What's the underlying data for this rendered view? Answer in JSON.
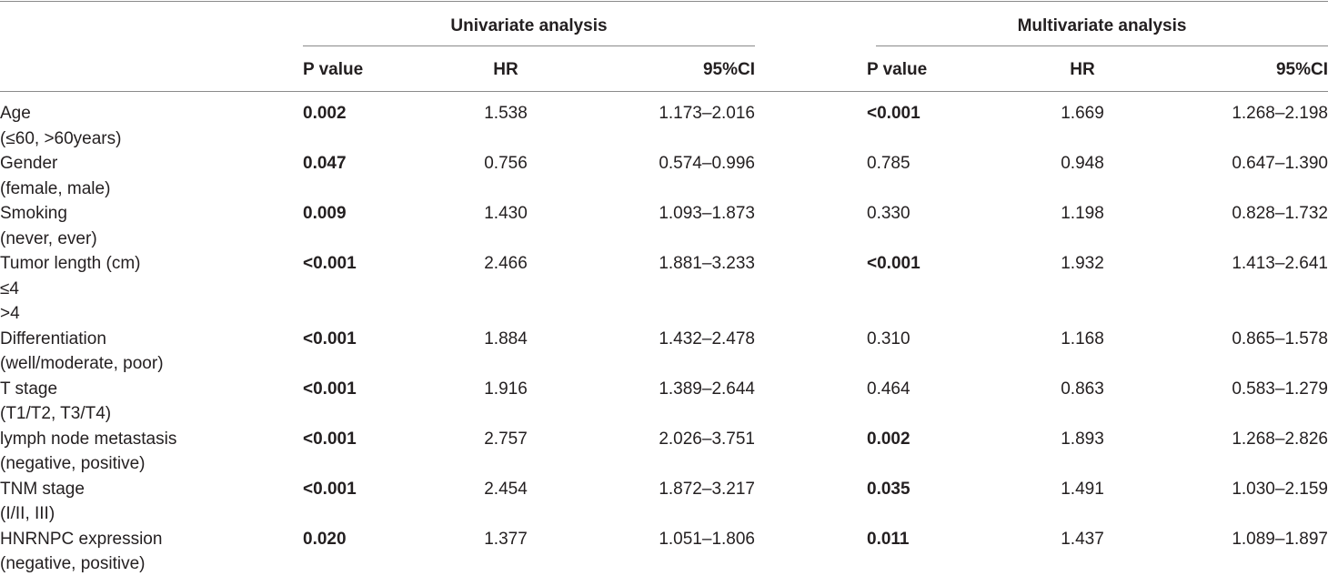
{
  "headers": {
    "univariate": "Univariate analysis",
    "multivariate": "Multivariate analysis",
    "columns": {
      "uni_p": "P value",
      "uni_hr": "HR",
      "uni_ci": "95%CI",
      "multi_p": "P value",
      "multi_hr": "HR",
      "multi_ci": "95%CI"
    }
  },
  "rows": [
    {
      "label": "Age",
      "sub": [
        "(≤60, >60years)"
      ],
      "uni": {
        "p": "0.002",
        "p_bold": true,
        "hr": "1.538",
        "ci": "1.173–2.016"
      },
      "multi": {
        "p": "<0.001",
        "p_bold": true,
        "hr": "1.669",
        "ci": "1.268–2.198"
      }
    },
    {
      "label": "Gender",
      "sub": [
        "(female, male)"
      ],
      "uni": {
        "p": "0.047",
        "p_bold": true,
        "hr": "0.756",
        "ci": "0.574–0.996"
      },
      "multi": {
        "p": "0.785",
        "p_bold": false,
        "hr": "0.948",
        "ci": "0.647–1.390"
      }
    },
    {
      "label": "Smoking",
      "sub": [
        "(never, ever)"
      ],
      "uni": {
        "p": "0.009",
        "p_bold": true,
        "hr": "1.430",
        "ci": "1.093–1.873"
      },
      "multi": {
        "p": "0.330",
        "p_bold": false,
        "hr": "1.198",
        "ci": "0.828–1.732"
      }
    },
    {
      "label": "Tumor length (cm)",
      "sub": [
        "≤4",
        ">4"
      ],
      "uni": {
        "p": "<0.001",
        "p_bold": true,
        "hr": "2.466",
        "ci": "1.881–3.233"
      },
      "multi": {
        "p": "<0.001",
        "p_bold": true,
        "hr": "1.932",
        "ci": "1.413–2.641"
      }
    },
    {
      "label": "Differentiation",
      "sub": [
        "(well/moderate, poor)"
      ],
      "uni": {
        "p": "<0.001",
        "p_bold": true,
        "hr": "1.884",
        "ci": "1.432–2.478"
      },
      "multi": {
        "p": "0.310",
        "p_bold": false,
        "hr": "1.168",
        "ci": "0.865–1.578"
      }
    },
    {
      "label": "T stage",
      "sub": [
        "(T1/T2, T3/T4)"
      ],
      "uni": {
        "p": "<0.001",
        "p_bold": true,
        "hr": "1.916",
        "ci": "1.389–2.644"
      },
      "multi": {
        "p": "0.464",
        "p_bold": false,
        "hr": "0.863",
        "ci": "0.583–1.279"
      }
    },
    {
      "label": "lymph node metastasis",
      "sub": [
        "(negative, positive)"
      ],
      "uni": {
        "p": "<0.001",
        "p_bold": true,
        "hr": "2.757",
        "ci": "2.026–3.751"
      },
      "multi": {
        "p": "0.002",
        "p_bold": true,
        "hr": "1.893",
        "ci": "1.268–2.826"
      }
    },
    {
      "label": "TNM stage",
      "sub": [
        "(I/II, III)"
      ],
      "uni": {
        "p": "<0.001",
        "p_bold": true,
        "hr": "2.454",
        "ci": "1.872–3.217"
      },
      "multi": {
        "p": "0.035",
        "p_bold": true,
        "hr": "1.491",
        "ci": "1.030–2.159"
      }
    },
    {
      "label": "HNRNPC expression",
      "sub": [
        "(negative, positive)"
      ],
      "uni": {
        "p": "0.020",
        "p_bold": true,
        "hr": "1.377",
        "ci": "1.051–1.806"
      },
      "multi": {
        "p": "0.011",
        "p_bold": true,
        "hr": "1.437",
        "ci": "1.089–1.897"
      }
    }
  ]
}
